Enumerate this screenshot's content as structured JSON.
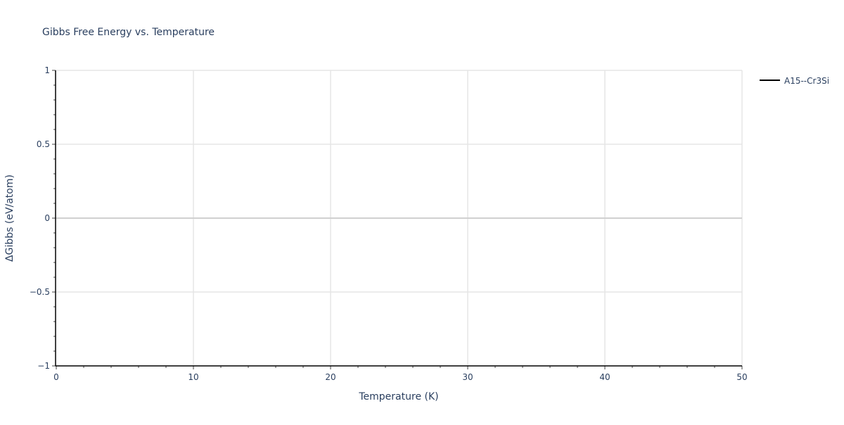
{
  "chart_data": {
    "type": "line",
    "title": "Gibbs Free Energy vs. Temperature",
    "xlabel": "Temperature (K)",
    "ylabel": "ΔGibbs (eV/atom)",
    "xlim": [
      0,
      50
    ],
    "ylim": [
      -1,
      1
    ],
    "x_ticks": [
      0,
      10,
      20,
      30,
      40,
      50
    ],
    "x_tick_labels": [
      "0",
      "10",
      "20",
      "30",
      "40",
      "50"
    ],
    "y_ticks": [
      -1,
      -0.5,
      0,
      0.5,
      1
    ],
    "y_tick_labels": [
      "−1",
      "−0.5",
      "0",
      "0.5",
      "1"
    ],
    "x_minor_step": 2,
    "y_minor_step": 0.1,
    "grid": true,
    "legend_position": "top-right",
    "series": [
      {
        "name": "A15--Cr3Si",
        "color": "#000000",
        "x": [],
        "y": []
      }
    ]
  }
}
